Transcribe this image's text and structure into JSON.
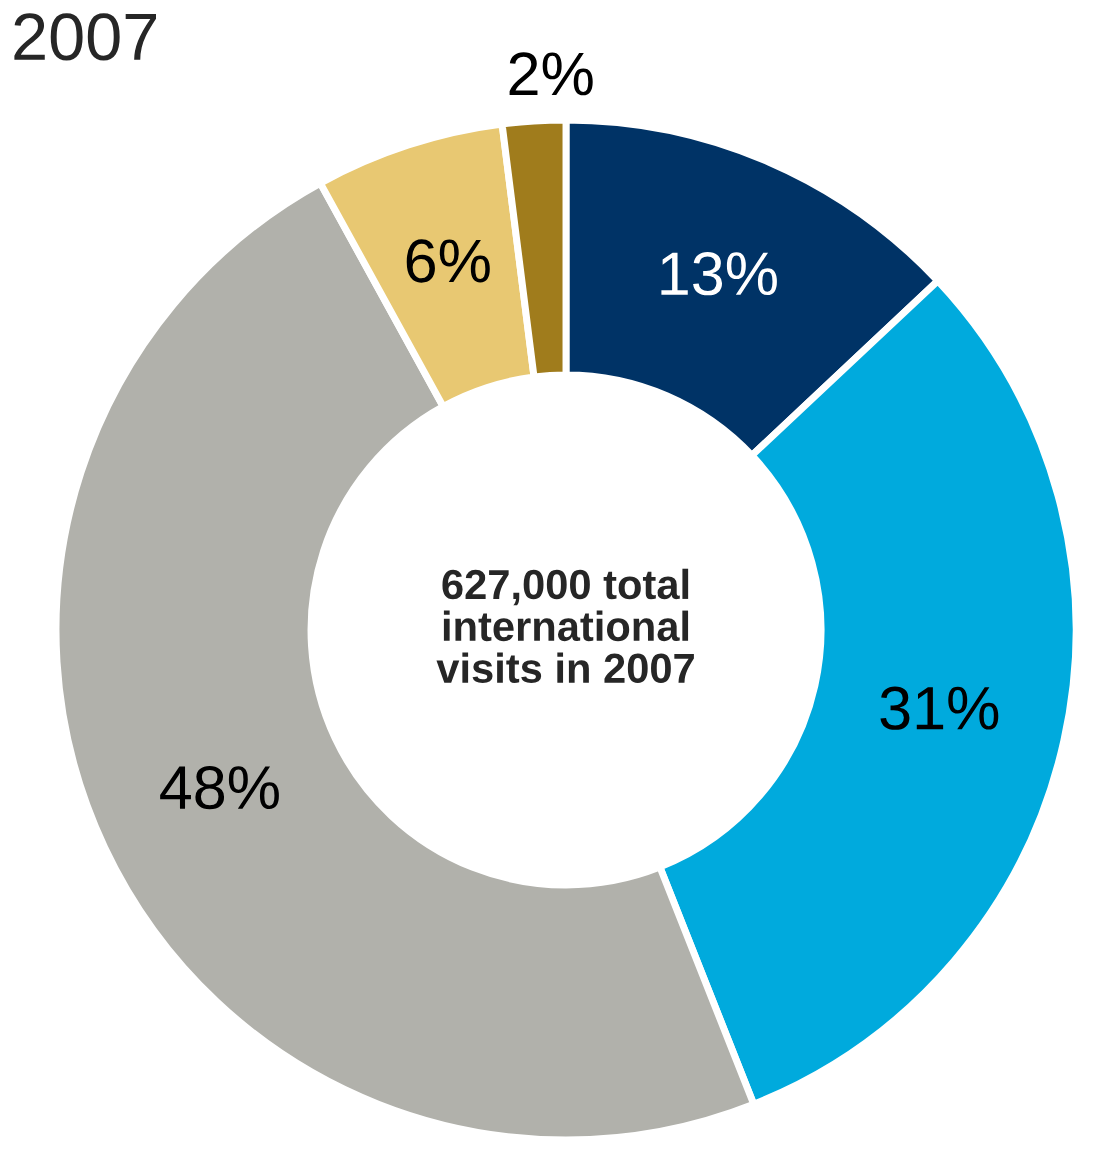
{
  "chart_data": {
    "type": "donut",
    "title": "2007",
    "categories": [
      null,
      null,
      null,
      null,
      null
    ],
    "values": [
      13,
      31,
      48,
      6,
      2
    ],
    "colors": [
      "#003366",
      "#00aadd",
      "#b1b1ab",
      "#e8c872",
      "#a07c1c"
    ],
    "value_labels": [
      "13%",
      "31%",
      "48%",
      "6%",
      "2%"
    ],
    "annotations": [
      "627,000 total\ninternational\nvisits in 2007"
    ],
    "legend": false
  }
}
